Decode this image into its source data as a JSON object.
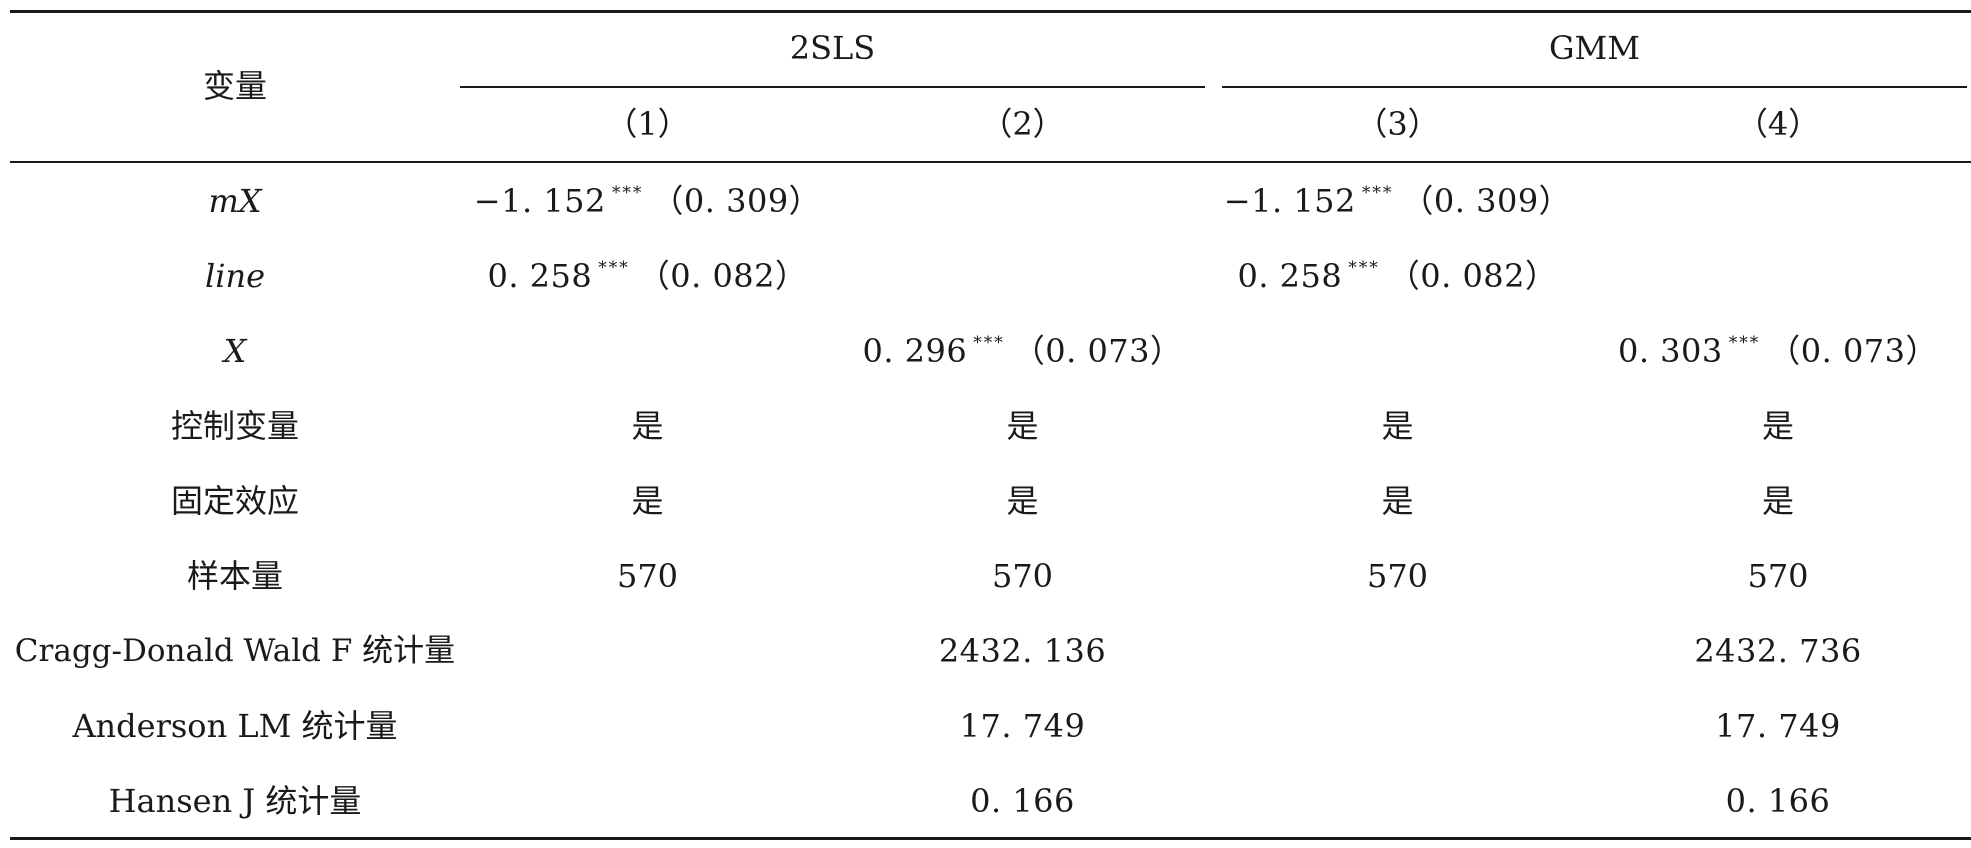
{
  "table": {
    "header": {
      "variable_label": "变量",
      "group_2sls": "2SLS",
      "group_gmm": "GMM",
      "col1": "（1）",
      "col2": "（2）",
      "col3": "（3）",
      "col4": "（4）"
    },
    "rows": {
      "mx": {
        "label": "mX",
        "c1_coef": "−1. 152",
        "c1_stars": "***",
        "c1_se": "（0. 309）",
        "c3_coef": "−1. 152",
        "c3_stars": "***",
        "c3_se": "（0. 309）"
      },
      "line": {
        "label": "line",
        "c1_coef": "0. 258",
        "c1_stars": "***",
        "c1_se": "（0. 082）",
        "c3_coef": "0. 258",
        "c3_stars": "***",
        "c3_se": "（0. 082）"
      },
      "x": {
        "label": "X",
        "c2_coef": "0. 296",
        "c2_stars": "***",
        "c2_se": "（0. 073）",
        "c4_coef": "0. 303",
        "c4_stars": "***",
        "c4_se": "（0. 073）"
      },
      "controls": {
        "label": "控制变量",
        "c1": "是",
        "c2": "是",
        "c3": "是",
        "c4": "是"
      },
      "fixed_effects": {
        "label": "固定效应",
        "c1": "是",
        "c2": "是",
        "c3": "是",
        "c4": "是"
      },
      "sample": {
        "label": "样本量",
        "c1": "570",
        "c2": "570",
        "c3": "570",
        "c4": "570"
      },
      "cragg": {
        "label": "Cragg-Donald Wald F 统计量",
        "c2": "2432. 136",
        "c4": "2432. 736"
      },
      "anderson": {
        "label": "Anderson LM 统计量",
        "c2": "17. 749",
        "c4": "17. 749"
      },
      "hansen": {
        "label": "Hansen J 统计量",
        "c2": "0. 166",
        "c4": "0. 166"
      }
    }
  }
}
